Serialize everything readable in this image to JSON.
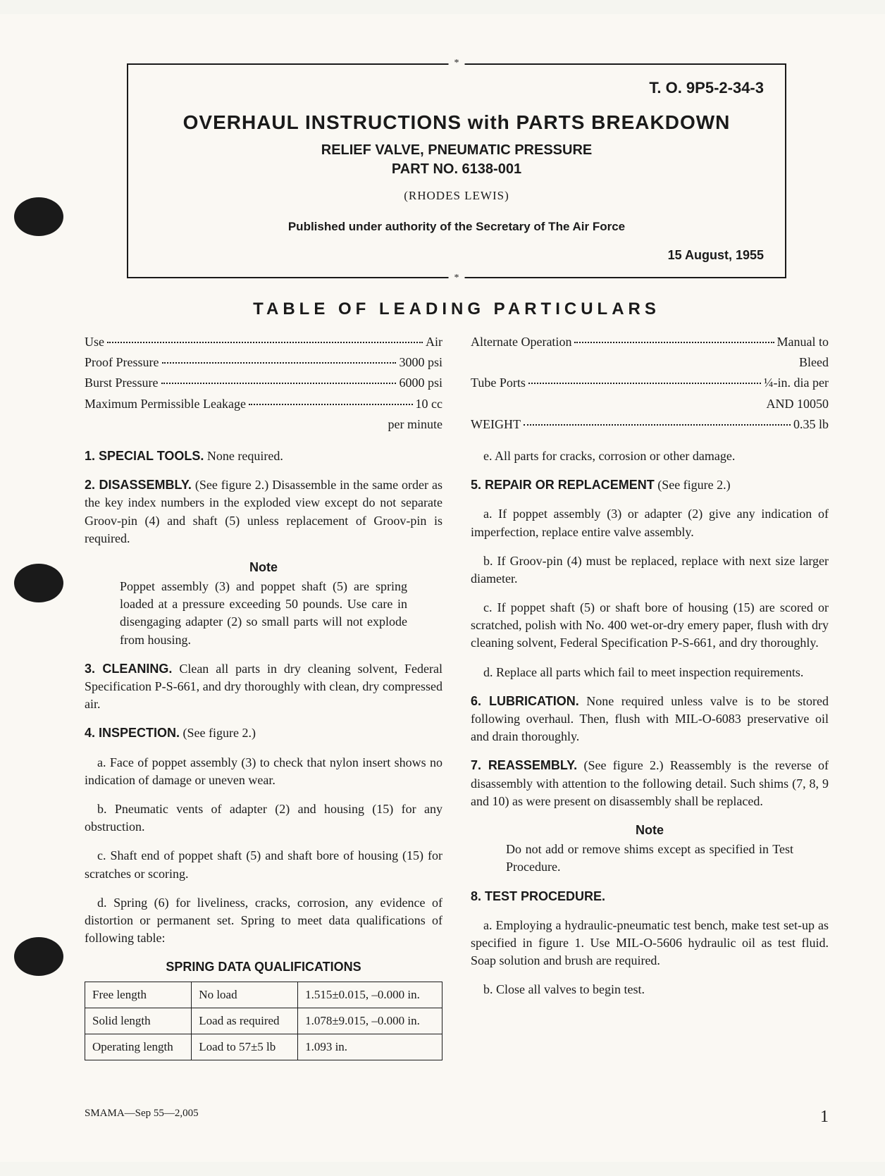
{
  "header": {
    "doc_number": "T. O. 9P5-2-34-3",
    "main_title": "OVERHAUL INSTRUCTIONS with PARTS BREAKDOWN",
    "sub_title": "RELIEF VALVE, PNEUMATIC PRESSURE",
    "part_no": "PART NO. 6138-001",
    "manufacturer": "(RHODES LEWIS)",
    "authority": "Published under authority of the Secretary of The Air Force",
    "pub_date": "15 August, 1955"
  },
  "particulars": {
    "title": "TABLE OF LEADING PARTICULARS",
    "left": [
      {
        "label": "Use",
        "value": "Air",
        "cont": ""
      },
      {
        "label": "Proof Pressure",
        "value": "3000 psi",
        "cont": ""
      },
      {
        "label": "Burst Pressure",
        "value": "6000 psi",
        "cont": ""
      },
      {
        "label": "Maximum Permissible Leakage",
        "value": "10 cc",
        "cont": "per minute"
      }
    ],
    "right": [
      {
        "label": "Alternate Operation",
        "value": "Manual to",
        "cont": "Bleed"
      },
      {
        "label": "Tube Ports",
        "value": "¼-in. dia per",
        "cont": "AND 10050"
      },
      {
        "label": "WEIGHT",
        "value": "0.35 lb",
        "cont": ""
      }
    ]
  },
  "sections": {
    "s1_head": "1. SPECIAL TOOLS.",
    "s1_body": " None required.",
    "s2_head": "2. DISASSEMBLY.",
    "s2_body": " (See figure 2.) Disassemble in the same order as the key index numbers in the exploded view except do not separate Groov-pin (4) and shaft (5) unless replacement of Groov-pin is required.",
    "note1_title": "Note",
    "note1_body": "Poppet assembly (3) and poppet shaft (5) are spring loaded at a pressure exceeding 50 pounds. Use care in disengaging adapter (2) so small parts will not explode from housing.",
    "s3_head": "3. CLEANING.",
    "s3_body": " Clean all parts in dry cleaning solvent, Federal Specification P-S-661, and dry thoroughly with clean, dry compressed air.",
    "s4_head": "4. INSPECTION.",
    "s4_body": " (See figure 2.)",
    "s4a": "a. Face of poppet assembly (3) to check that nylon insert shows no indication of damage or uneven wear.",
    "s4b": "b. Pneumatic vents of adapter (2) and housing (15) for any obstruction.",
    "s4c": "c. Shaft end of poppet shaft (5) and shaft bore of housing (15) for scratches or scoring.",
    "s4d": "d. Spring (6) for liveliness, cracks, corrosion, any evidence of distortion or permanent set. Spring to meet data qualifications of following table:",
    "spring_table_title": "SPRING DATA QUALIFICATIONS",
    "spring_rows": [
      [
        "Free length",
        "No load",
        "1.515±0.015, –0.000 in."
      ],
      [
        "Solid length",
        "Load as required",
        "1.078±9.015, –0.000 in."
      ],
      [
        "Operating length",
        "Load to 57±5 lb",
        "1.093 in."
      ]
    ],
    "s4e": "e. All parts for cracks, corrosion or other damage.",
    "s5_head": "5. REPAIR OR REPLACEMENT",
    "s5_body": " (See figure 2.)",
    "s5a": "a. If poppet assembly (3) or adapter (2) give any indication of imperfection, replace entire valve assembly.",
    "s5b": "b. If Groov-pin (4) must be replaced, replace with next size larger diameter.",
    "s5c": "c. If poppet shaft (5) or shaft bore of housing (15) are scored or scratched, polish with No. 400 wet-or-dry emery paper, flush with dry cleaning solvent, Federal Specification P-S-661, and dry thoroughly.",
    "s5d": "d. Replace all parts which fail to meet inspection requirements.",
    "s6_head": "6. LUBRICATION.",
    "s6_body": " None required unless valve is to be stored following overhaul. Then, flush with MIL-O-6083 preservative oil and drain thoroughly.",
    "s7_head": "7. REASSEMBLY.",
    "s7_body": " (See figure 2.) Reassembly is the reverse of disassembly with attention to the following detail. Such shims (7, 8, 9 and 10) as were present on disassembly shall be replaced.",
    "note2_title": "Note",
    "note2_body": "Do not add or remove shims except as specified in Test Procedure.",
    "s8_head": "8. TEST PROCEDURE.",
    "s8a": "a. Employing a hydraulic-pneumatic test bench, make test set-up as specified in figure 1. Use MIL-O-5606 hydraulic oil as test fluid. Soap solution and brush are required.",
    "s8b": "b. Close all valves to begin test."
  },
  "footer": {
    "left": "SMAMA—Sep 55—2,005",
    "page_num": "1"
  }
}
